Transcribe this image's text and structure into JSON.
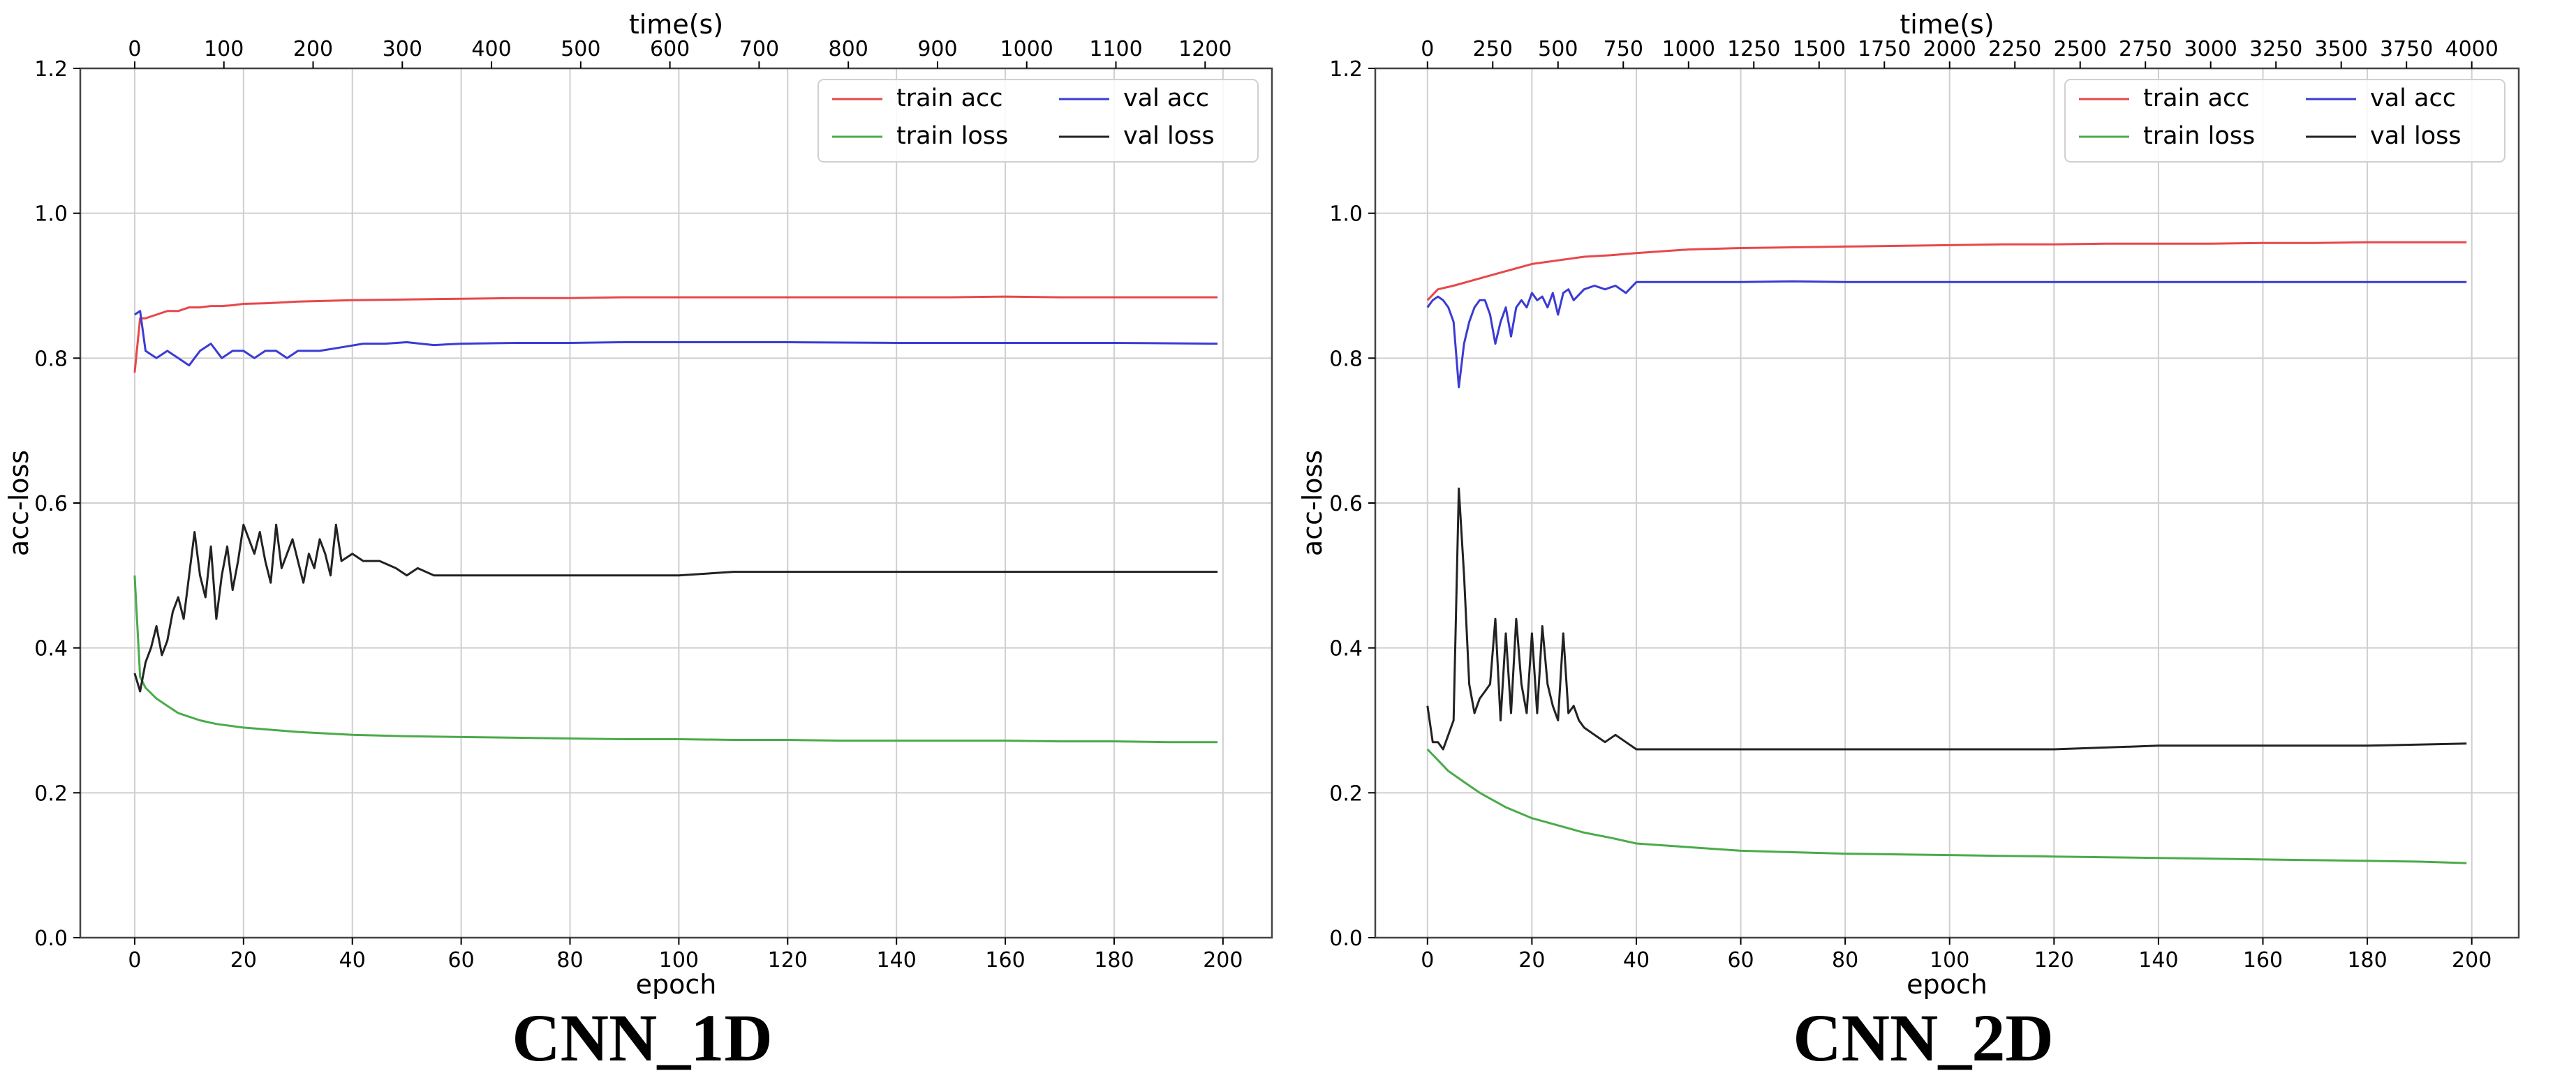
{
  "figure": {
    "panels": [
      "CNN_1D",
      "CNN_2D"
    ]
  },
  "chart_data": [
    {
      "type": "line",
      "caption": "CNN_1D",
      "xlabel": "epoch",
      "ylabel": "acc-loss",
      "top_xlabel": "time(s)",
      "xlim": [
        -10,
        209
      ],
      "ylim": [
        0.0,
        1.2
      ],
      "x_ticks": [
        0,
        20,
        40,
        60,
        80,
        100,
        120,
        140,
        160,
        180,
        200
      ],
      "y_ticks": [
        0.0,
        0.2,
        0.4,
        0.6,
        0.8,
        1.0,
        1.2
      ],
      "y_tick_labels": [
        "0.0",
        "0.2",
        "0.4",
        "0.6",
        "0.8",
        "1.0",
        "1.2"
      ],
      "top_ticks": [
        0,
        100,
        200,
        300,
        400,
        500,
        600,
        700,
        800,
        900,
        1000,
        1100,
        1200
      ],
      "top_seconds_per_epoch": 6.1,
      "grid": true,
      "legend_position": "top-right",
      "legend_columns": 2,
      "legend": [
        "train acc",
        "val acc",
        "train loss",
        "val loss"
      ],
      "series": [
        {
          "name": "train acc",
          "color": "#e8474b",
          "x": [
            0,
            1,
            2,
            4,
            6,
            8,
            10,
            12,
            14,
            16,
            18,
            20,
            25,
            30,
            35,
            40,
            50,
            60,
            70,
            80,
            90,
            100,
            110,
            120,
            130,
            140,
            150,
            160,
            170,
            180,
            190,
            199
          ],
          "y": [
            0.78,
            0.855,
            0.855,
            0.86,
            0.865,
            0.865,
            0.87,
            0.87,
            0.872,
            0.872,
            0.873,
            0.875,
            0.876,
            0.878,
            0.879,
            0.88,
            0.881,
            0.882,
            0.883,
            0.883,
            0.884,
            0.884,
            0.884,
            0.884,
            0.884,
            0.884,
            0.884,
            0.885,
            0.884,
            0.884,
            0.884,
            0.884
          ]
        },
        {
          "name": "val acc",
          "color": "#3b3bd4",
          "x": [
            0,
            1,
            2,
            4,
            6,
            8,
            10,
            12,
            14,
            16,
            18,
            20,
            22,
            24,
            26,
            28,
            30,
            34,
            38,
            42,
            46,
            50,
            55,
            60,
            70,
            80,
            90,
            100,
            120,
            140,
            160,
            180,
            199
          ],
          "y": [
            0.86,
            0.865,
            0.81,
            0.8,
            0.81,
            0.8,
            0.79,
            0.81,
            0.82,
            0.8,
            0.81,
            0.81,
            0.8,
            0.81,
            0.81,
            0.8,
            0.81,
            0.81,
            0.815,
            0.82,
            0.82,
            0.822,
            0.818,
            0.82,
            0.821,
            0.821,
            0.822,
            0.822,
            0.822,
            0.821,
            0.821,
            0.821,
            0.82
          ]
        },
        {
          "name": "train loss",
          "color": "#4aab4a",
          "x": [
            0,
            1,
            2,
            4,
            6,
            8,
            10,
            12,
            15,
            20,
            25,
            30,
            40,
            50,
            60,
            70,
            80,
            90,
            100,
            110,
            120,
            130,
            140,
            150,
            160,
            170,
            180,
            190,
            199
          ],
          "y": [
            0.5,
            0.36,
            0.345,
            0.33,
            0.32,
            0.31,
            0.305,
            0.3,
            0.295,
            0.29,
            0.287,
            0.284,
            0.28,
            0.278,
            0.277,
            0.276,
            0.275,
            0.274,
            0.274,
            0.273,
            0.273,
            0.272,
            0.272,
            0.272,
            0.272,
            0.271,
            0.271,
            0.27,
            0.27
          ]
        },
        {
          "name": "val loss",
          "color": "#222222",
          "x": [
            0,
            1,
            2,
            3,
            4,
            5,
            6,
            7,
            8,
            9,
            10,
            11,
            12,
            13,
            14,
            15,
            16,
            17,
            18,
            19,
            20,
            21,
            22,
            23,
            24,
            25,
            26,
            27,
            28,
            29,
            30,
            31,
            32,
            33,
            34,
            35,
            36,
            37,
            38,
            40,
            42,
            45,
            48,
            50,
            52,
            55,
            60,
            70,
            80,
            90,
            100,
            110,
            120,
            130,
            140,
            150,
            160,
            170,
            180,
            190,
            199
          ],
          "y": [
            0.365,
            0.34,
            0.38,
            0.4,
            0.43,
            0.39,
            0.41,
            0.45,
            0.47,
            0.44,
            0.5,
            0.56,
            0.5,
            0.47,
            0.54,
            0.44,
            0.5,
            0.54,
            0.48,
            0.52,
            0.57,
            0.55,
            0.53,
            0.56,
            0.52,
            0.49,
            0.57,
            0.51,
            0.53,
            0.55,
            0.52,
            0.49,
            0.53,
            0.51,
            0.55,
            0.53,
            0.5,
            0.57,
            0.52,
            0.53,
            0.52,
            0.52,
            0.51,
            0.5,
            0.51,
            0.5,
            0.5,
            0.5,
            0.5,
            0.5,
            0.5,
            0.505,
            0.505,
            0.505,
            0.505,
            0.505,
            0.505,
            0.505,
            0.505,
            0.505,
            0.505
          ]
        }
      ]
    },
    {
      "type": "line",
      "caption": "CNN_2D",
      "xlabel": "epoch",
      "ylabel": "acc-loss",
      "top_xlabel": "time(s)",
      "xlim": [
        -10,
        209
      ],
      "ylim": [
        0.0,
        1.2
      ],
      "x_ticks": [
        0,
        20,
        40,
        60,
        80,
        100,
        120,
        140,
        160,
        180,
        200
      ],
      "y_ticks": [
        0.0,
        0.2,
        0.4,
        0.6,
        0.8,
        1.0,
        1.2
      ],
      "y_tick_labels": [
        "0.0",
        "0.2",
        "0.4",
        "0.6",
        "0.8",
        "1.0",
        "1.2"
      ],
      "top_ticks": [
        0,
        250,
        500,
        750,
        1000,
        1250,
        1500,
        1750,
        2000,
        2250,
        2500,
        2750,
        3000,
        3250,
        3500,
        3750,
        4000
      ],
      "top_seconds_per_epoch": 20.0,
      "grid": true,
      "legend_position": "top-right",
      "legend_columns": 2,
      "legend": [
        "train acc",
        "val acc",
        "train loss",
        "val loss"
      ],
      "series": [
        {
          "name": "train acc",
          "color": "#e8474b",
          "x": [
            0,
            2,
            5,
            10,
            15,
            20,
            25,
            30,
            35,
            40,
            50,
            60,
            70,
            80,
            90,
            100,
            110,
            120,
            130,
            140,
            150,
            160,
            170,
            180,
            190,
            199
          ],
          "y": [
            0.88,
            0.895,
            0.9,
            0.91,
            0.92,
            0.93,
            0.935,
            0.94,
            0.942,
            0.945,
            0.95,
            0.952,
            0.953,
            0.954,
            0.955,
            0.956,
            0.957,
            0.957,
            0.958,
            0.958,
            0.958,
            0.959,
            0.959,
            0.96,
            0.96,
            0.96
          ]
        },
        {
          "name": "val acc",
          "color": "#3b3bd4",
          "x": [
            0,
            1,
            2,
            3,
            4,
            5,
            6,
            7,
            8,
            9,
            10,
            11,
            12,
            13,
            14,
            15,
            16,
            17,
            18,
            19,
            20,
            21,
            22,
            23,
            24,
            25,
            26,
            27,
            28,
            30,
            32,
            34,
            36,
            38,
            40,
            45,
            50,
            60,
            70,
            80,
            90,
            100,
            120,
            140,
            160,
            180,
            199
          ],
          "y": [
            0.87,
            0.88,
            0.885,
            0.88,
            0.87,
            0.85,
            0.76,
            0.82,
            0.85,
            0.87,
            0.88,
            0.88,
            0.86,
            0.82,
            0.85,
            0.87,
            0.83,
            0.87,
            0.88,
            0.87,
            0.89,
            0.88,
            0.885,
            0.87,
            0.89,
            0.86,
            0.89,
            0.895,
            0.88,
            0.895,
            0.9,
            0.895,
            0.9,
            0.89,
            0.905,
            0.905,
            0.905,
            0.905,
            0.906,
            0.905,
            0.905,
            0.905,
            0.905,
            0.905,
            0.905,
            0.905,
            0.905
          ]
        },
        {
          "name": "train loss",
          "color": "#4aab4a",
          "x": [
            0,
            2,
            4,
            6,
            8,
            10,
            15,
            20,
            25,
            30,
            35,
            40,
            50,
            60,
            70,
            80,
            90,
            100,
            110,
            120,
            130,
            140,
            150,
            160,
            170,
            180,
            190,
            199
          ],
          "y": [
            0.26,
            0.245,
            0.23,
            0.22,
            0.21,
            0.2,
            0.18,
            0.165,
            0.155,
            0.145,
            0.138,
            0.13,
            0.125,
            0.12,
            0.118,
            0.116,
            0.115,
            0.114,
            0.113,
            0.112,
            0.111,
            0.11,
            0.109,
            0.108,
            0.107,
            0.106,
            0.105,
            0.103
          ]
        },
        {
          "name": "val loss",
          "color": "#222222",
          "x": [
            0,
            1,
            2,
            3,
            4,
            5,
            6,
            7,
            8,
            9,
            10,
            11,
            12,
            13,
            14,
            15,
            16,
            17,
            18,
            19,
            20,
            21,
            22,
            23,
            24,
            25,
            26,
            27,
            28,
            29,
            30,
            32,
            34,
            36,
            38,
            40,
            45,
            50,
            60,
            70,
            80,
            90,
            100,
            120,
            140,
            160,
            180,
            199
          ],
          "y": [
            0.32,
            0.27,
            0.27,
            0.26,
            0.28,
            0.3,
            0.62,
            0.5,
            0.35,
            0.31,
            0.33,
            0.34,
            0.35,
            0.44,
            0.3,
            0.42,
            0.31,
            0.44,
            0.35,
            0.31,
            0.42,
            0.31,
            0.43,
            0.35,
            0.32,
            0.3,
            0.42,
            0.31,
            0.32,
            0.3,
            0.29,
            0.28,
            0.27,
            0.28,
            0.27,
            0.26,
            0.26,
            0.26,
            0.26,
            0.26,
            0.26,
            0.26,
            0.26,
            0.26,
            0.265,
            0.265,
            0.265,
            0.268
          ]
        }
      ]
    }
  ]
}
